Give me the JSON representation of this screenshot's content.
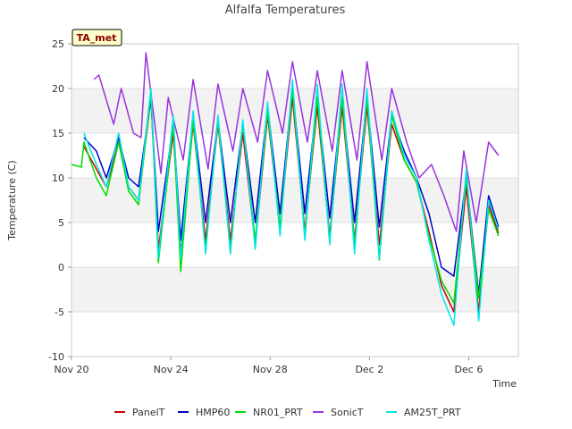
{
  "chart_data": {
    "type": "line",
    "title": "Alfalfa Temperatures",
    "xlabel": "Time",
    "ylabel": "Temperature (C)",
    "badge": "TA_met",
    "ylim": [
      -10,
      25
    ],
    "yticks": [
      -10,
      -5,
      0,
      5,
      10,
      15,
      20,
      25
    ],
    "xlim": [
      0,
      18
    ],
    "xticks": [
      {
        "value": 0,
        "label": "Nov 20"
      },
      {
        "value": 4,
        "label": "Nov 24"
      },
      {
        "value": 8,
        "label": "Nov 28"
      },
      {
        "value": 12,
        "label": "Dec 2"
      },
      {
        "value": 16,
        "label": "Dec 6"
      }
    ],
    "grid": "horizontal bands",
    "legend_position": "bottom",
    "series": [
      {
        "name": "PanelT",
        "color": "#cc0000",
        "x": [
          0.5,
          1.0,
          1.4,
          1.9,
          2.3,
          2.7,
          3.2,
          3.5,
          4.1,
          4.4,
          4.9,
          5.4,
          5.9,
          6.4,
          6.9,
          7.4,
          7.9,
          8.4,
          8.9,
          9.4,
          9.9,
          10.4,
          10.9,
          11.4,
          11.9,
          12.4,
          12.9,
          13.4,
          13.9,
          14.4,
          14.9,
          15.4,
          15.9,
          16.4,
          16.8,
          17.2
        ],
        "y": [
          13.5,
          11,
          9,
          14,
          9,
          7.5,
          19,
          2,
          15,
          1.5,
          16,
          3,
          16,
          3,
          15,
          2.5,
          17,
          4.5,
          19,
          4,
          18,
          3.5,
          18,
          3,
          18,
          2.5,
          16,
          12,
          9.5,
          4,
          -2,
          -5,
          9,
          -5,
          7,
          3.8
        ]
      },
      {
        "name": "HMP60",
        "color": "#0000cc",
        "x": [
          0.5,
          1.0,
          1.4,
          1.9,
          2.3,
          2.7,
          3.2,
          3.5,
          4.1,
          4.4,
          4.9,
          5.4,
          5.9,
          6.4,
          6.9,
          7.4,
          7.9,
          8.4,
          8.9,
          9.4,
          9.9,
          10.4,
          10.9,
          11.4,
          11.9,
          12.4,
          12.9,
          13.4,
          13.9,
          14.4,
          14.9,
          15.4,
          15.9,
          16.4,
          16.8,
          17.2
        ],
        "y": [
          14.5,
          13,
          10,
          14.5,
          10,
          9,
          19,
          4,
          16,
          3,
          17,
          5,
          16.5,
          5,
          16,
          5,
          18,
          6,
          20,
          6,
          19,
          5.5,
          19,
          5,
          19,
          4.5,
          17,
          13,
          10,
          6,
          0,
          -1,
          10,
          -3,
          8,
          4.5
        ]
      },
      {
        "name": "NR01_PRT",
        "color": "#00dd00",
        "x": [
          0.0,
          0.4,
          0.5,
          1.0,
          1.4,
          1.9,
          2.3,
          2.7,
          3.2,
          3.5,
          4.1,
          4.4,
          4.9,
          5.4,
          5.9,
          6.4,
          6.9,
          7.4,
          7.9,
          8.4,
          8.9,
          9.4,
          9.9,
          10.4,
          10.9,
          11.4,
          11.9,
          12.4,
          12.9,
          13.4,
          13.9,
          14.4,
          14.9,
          15.4,
          15.9,
          16.4,
          16.8,
          17.2
        ],
        "y": [
          11.5,
          11.2,
          14,
          10,
          8,
          14,
          8.5,
          7,
          19.5,
          0.5,
          16,
          -0.5,
          16.5,
          2,
          16.5,
          2,
          16,
          3,
          17.5,
          4.5,
          20,
          3.5,
          19,
          3,
          19,
          2.5,
          19,
          0.8,
          17,
          12,
          9.5,
          3.5,
          -1.5,
          -4,
          10,
          -3.5,
          6.5,
          3.5
        ]
      },
      {
        "name": "SonicT",
        "color": "#9933dd",
        "x": [
          0.9,
          1.1,
          1.7,
          2.0,
          2.5,
          2.8,
          3.0,
          3.6,
          3.9,
          4.5,
          4.9,
          5.5,
          5.9,
          6.5,
          6.9,
          7.5,
          7.9,
          8.5,
          8.9,
          9.5,
          9.9,
          10.5,
          10.9,
          11.5,
          11.9,
          12.5,
          12.9,
          13.5,
          14.0,
          14.5,
          15.0,
          15.5,
          15.8,
          16.3,
          16.8,
          17.2
        ],
        "y": [
          21,
          21.5,
          16,
          20,
          15,
          14.5,
          24,
          10.5,
          19,
          12,
          21,
          11,
          20.5,
          13,
          20,
          14,
          22,
          15,
          23,
          14,
          22,
          13,
          22,
          12,
          23,
          12,
          20,
          14,
          10,
          11.5,
          8,
          4,
          13,
          5,
          14,
          12.5
        ]
      },
      {
        "name": "AM25T_PRT",
        "color": "#00e5e5",
        "x": [
          0.5,
          1.0,
          1.4,
          1.9,
          2.3,
          2.7,
          3.2,
          3.5,
          4.1,
          4.4,
          4.9,
          5.4,
          5.9,
          6.4,
          6.9,
          7.4,
          7.9,
          8.4,
          8.9,
          9.4,
          9.9,
          10.4,
          10.9,
          11.4,
          11.9,
          12.4,
          12.9,
          13.4,
          13.9,
          14.4,
          14.9,
          15.4,
          15.9,
          16.4,
          16.8,
          17.2
        ],
        "y": [
          15,
          11.5,
          9,
          15,
          9,
          7.5,
          20,
          1,
          17,
          1,
          17.5,
          1.5,
          17,
          1.5,
          16.5,
          2,
          18.5,
          3.5,
          21,
          3,
          20.5,
          2.5,
          20.5,
          1.5,
          20,
          1,
          17.5,
          12.5,
          10,
          3,
          -3,
          -6.5,
          11,
          -6,
          7.5,
          4.2
        ]
      }
    ]
  }
}
